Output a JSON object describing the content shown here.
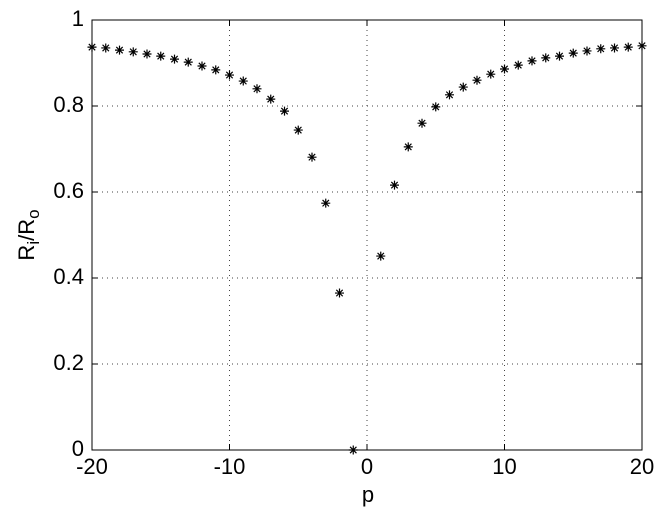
{
  "chart_data": {
    "type": "scatter",
    "xlabel": "p",
    "ylabel": [
      "R",
      "i",
      "/R",
      "o"
    ],
    "series": [
      {
        "color": "#000000",
        "x": [
          -20,
          -19,
          -18,
          -17,
          -16,
          -15,
          -14,
          -13,
          -12,
          -11,
          -10,
          -9,
          -8,
          -7,
          -6,
          -5,
          -4,
          -3,
          -2,
          -1,
          1,
          2,
          3,
          4,
          5,
          6,
          7,
          8,
          9,
          10,
          11,
          12,
          13,
          14,
          15,
          16,
          17,
          18,
          19,
          20
        ],
        "values": [
          0.937,
          0.935,
          0.93,
          0.926,
          0.921,
          0.916,
          0.909,
          0.902,
          0.893,
          0.884,
          0.872,
          0.858,
          0.84,
          0.816,
          0.788,
          0.744,
          0.681,
          0.574,
          0.365,
          0,
          0.451,
          0.616,
          0.705,
          0.76,
          0.798,
          0.826,
          0.844,
          0.86,
          0.874,
          0.886,
          0.895,
          0.905,
          0.912,
          0.916,
          0.923,
          0.928,
          0.933,
          0.935,
          0.937,
          0.94
        ]
      }
    ],
    "xlim": [
      -20,
      20
    ],
    "xticks": [
      -20,
      -10,
      0,
      10,
      20
    ],
    "ylim": [
      0,
      1
    ],
    "yticks": [
      0,
      0.2,
      0.4,
      0.6,
      0.8,
      1
    ],
    "grid": true
  }
}
